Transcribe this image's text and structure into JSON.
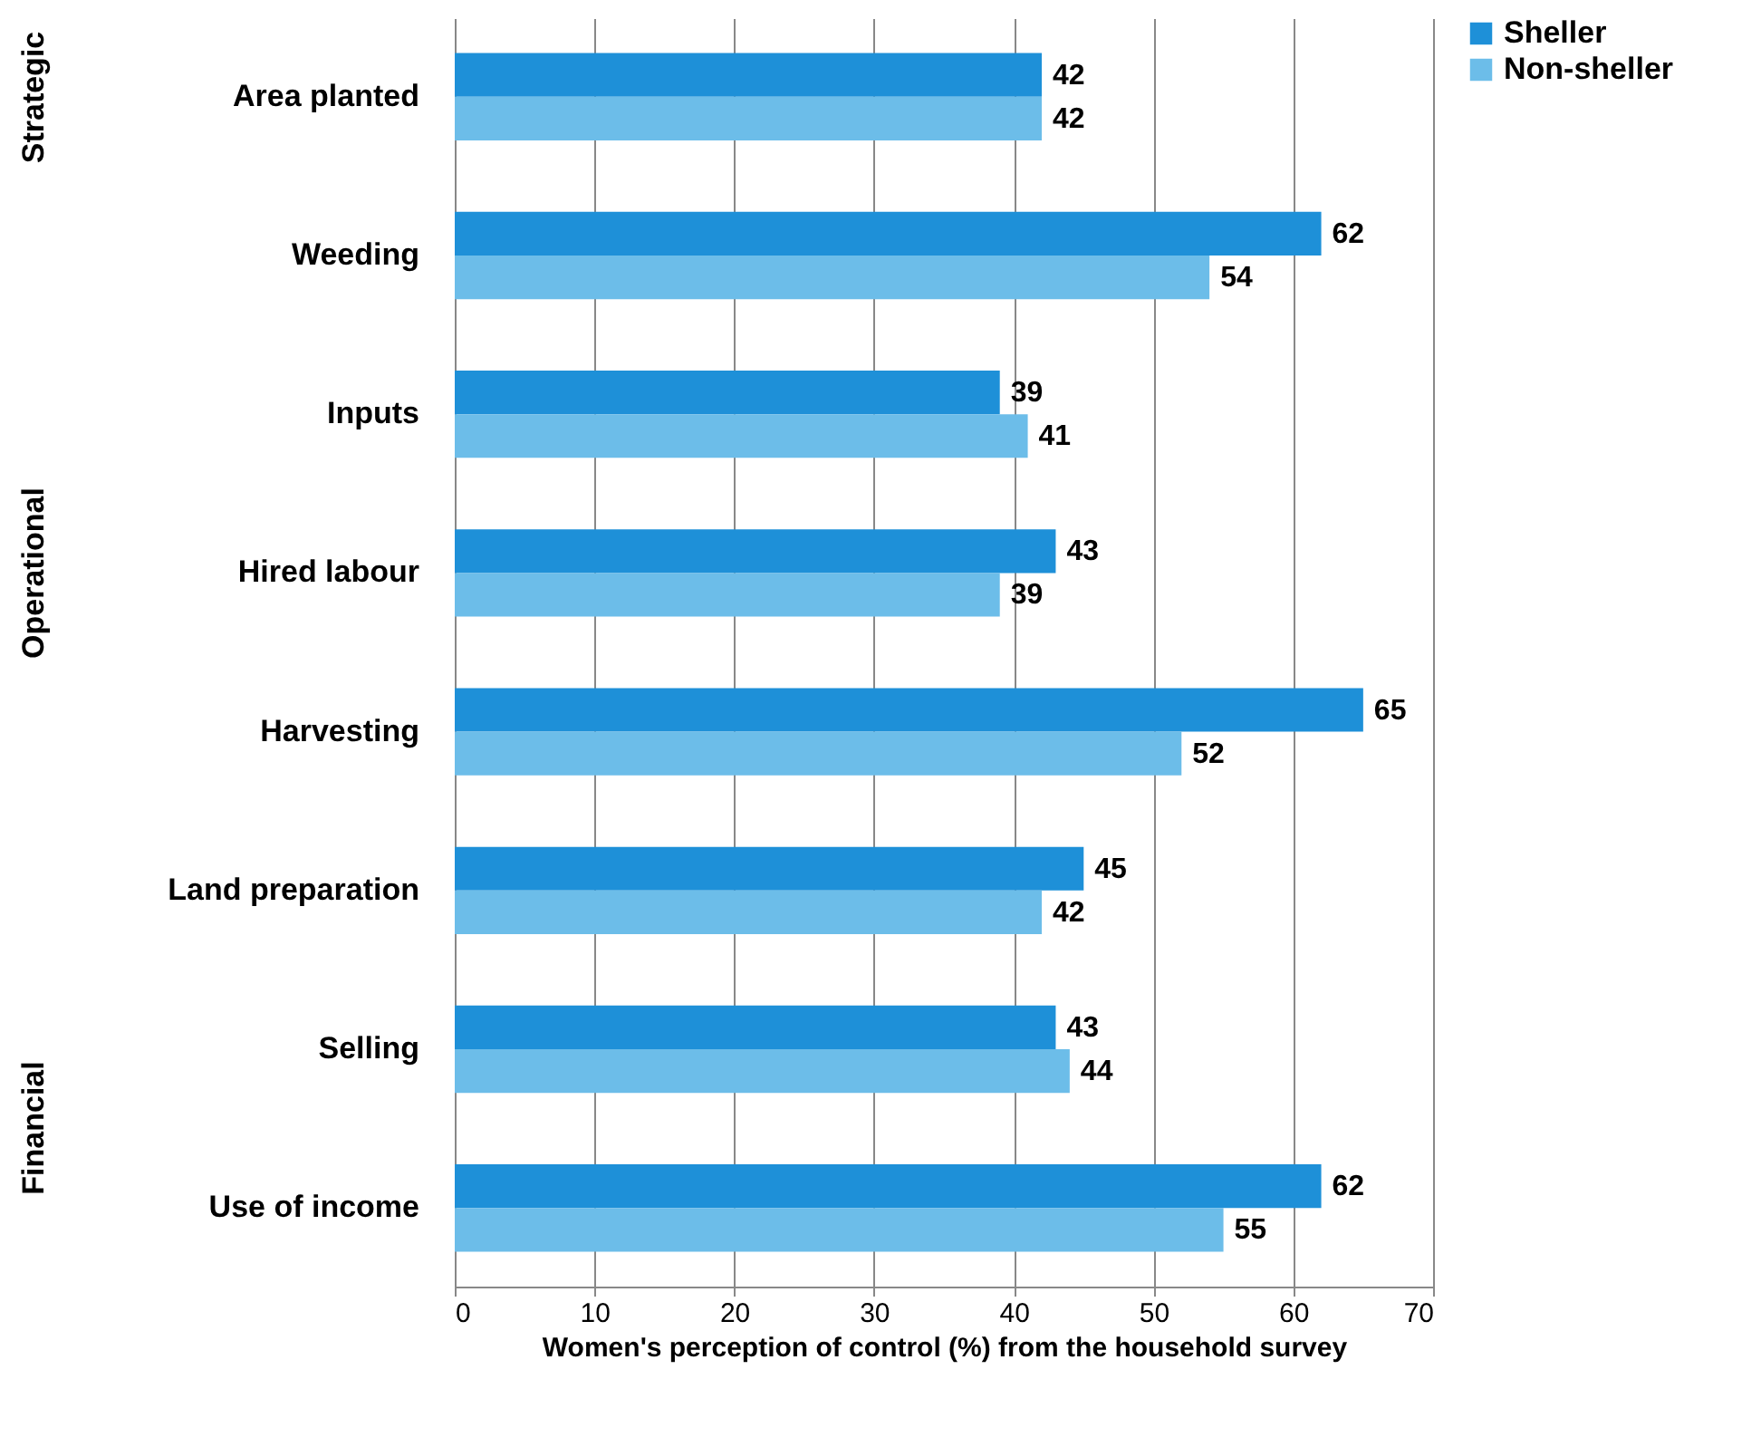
{
  "chart_data": {
    "type": "bar",
    "orientation": "horizontal",
    "xlabel": "Women's perception of control (%) from the household survey",
    "categories": [
      "Area planted",
      "Weeding",
      "Inputs",
      "Hired labour",
      "Harvesting",
      "Land preparation",
      "Selling",
      "Use of income"
    ],
    "series": [
      {
        "name": "Sheller",
        "color": "#1e90d8",
        "values": [
          42,
          62,
          39,
          43,
          65,
          45,
          43,
          62
        ]
      },
      {
        "name": "Non-sheller",
        "color": "#6cbde9",
        "values": [
          42,
          54,
          41,
          39,
          52,
          42,
          44,
          55
        ]
      }
    ],
    "xlim": [
      0,
      70
    ],
    "xticks": [
      0,
      10,
      20,
      30,
      40,
      50,
      60,
      70
    ],
    "grid": "x",
    "legend": "right",
    "data_labels": true,
    "annotations": [
      "Strategic",
      "Operational",
      "Financial"
    ]
  }
}
